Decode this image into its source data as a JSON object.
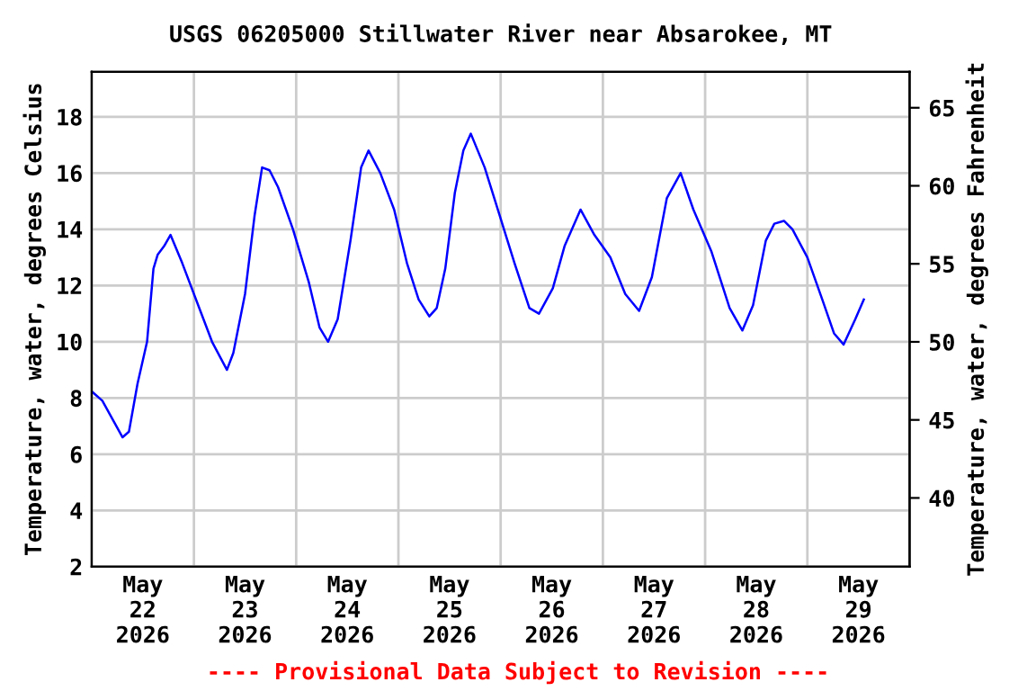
{
  "chart_data": {
    "type": "line",
    "title": "USGS 06205000 Stillwater River near Absarokee, MT",
    "ylabel": "Temperature, water, degrees Celsius",
    "y2label": "Temperature, water, degrees Fahrenheit",
    "annotations": [
      "---- Provisional Data Subject to Revision ----"
    ],
    "xlim": [
      "2026-05-22T00:00",
      "2026-05-30T00:00"
    ],
    "xticks": [
      {
        "value": "2026-05-22T00:00",
        "label": null
      },
      {
        "value": "2026-05-22T12:00",
        "label": "May\n22\n2026"
      },
      {
        "value": "2026-05-23T00:00",
        "label": null
      },
      {
        "value": "2026-05-23T12:00",
        "label": "May\n23\n2026"
      },
      {
        "value": "2026-05-24T00:00",
        "label": null
      },
      {
        "value": "2026-05-24T12:00",
        "label": "May\n24\n2026"
      },
      {
        "value": "2026-05-25T00:00",
        "label": null
      },
      {
        "value": "2026-05-25T12:00",
        "label": "May\n25\n2026"
      },
      {
        "value": "2026-05-26T00:00",
        "label": null
      },
      {
        "value": "2026-05-26T12:00",
        "label": "May\n26\n2026"
      },
      {
        "value": "2026-05-27T00:00",
        "label": null
      },
      {
        "value": "2026-05-27T12:00",
        "label": "May\n27\n2026"
      },
      {
        "value": "2026-05-28T00:00",
        "label": null
      },
      {
        "value": "2026-05-28T12:00",
        "label": "May\n28\n2026"
      },
      {
        "value": "2026-05-29T00:00",
        "label": null
      },
      {
        "value": "2026-05-29T12:00",
        "label": "May\n29\n2026"
      },
      {
        "value": "2026-05-30T00:00",
        "label": null
      }
    ],
    "ylim": [
      2,
      19.6
    ],
    "yticks": [
      2,
      4,
      6,
      8,
      10,
      12,
      14,
      16,
      18
    ],
    "y2lim": [
      35.6,
      67.3
    ],
    "y2ticks": [
      40,
      45,
      50,
      55,
      60,
      65
    ],
    "grid": true,
    "line_style": "solid",
    "marker": "none",
    "series": [
      {
        "color": "#0000ff",
        "x": [
          "2026-05-22T00:15",
          "2026-05-22T02:30",
          "2026-05-22T07:15",
          "2026-05-22T08:45",
          "2026-05-22T10:45",
          "2026-05-22T13:00",
          "2026-05-22T14:30",
          "2026-05-22T15:30",
          "2026-05-22T17:00",
          "2026-05-22T18:30",
          "2026-05-22T21:15",
          "2026-05-23T01:00",
          "2026-05-23T04:15",
          "2026-05-23T07:45",
          "2026-05-23T09:15",
          "2026-05-23T12:00",
          "2026-05-23T14:15",
          "2026-05-23T16:00",
          "2026-05-23T17:45",
          "2026-05-23T19:45",
          "2026-05-23T23:15",
          "2026-05-24T03:00",
          "2026-05-24T05:30",
          "2026-05-24T07:30",
          "2026-05-24T09:45",
          "2026-05-24T12:45",
          "2026-05-24T15:15",
          "2026-05-24T17:00",
          "2026-05-24T19:45",
          "2026-05-24T23:00",
          "2026-05-25T02:00",
          "2026-05-25T04:45",
          "2026-05-25T07:15",
          "2026-05-25T09:00",
          "2026-05-25T11:00",
          "2026-05-25T13:15",
          "2026-05-25T15:15",
          "2026-05-25T17:00",
          "2026-05-25T20:15",
          "2026-05-25T23:45",
          "2026-05-26T03:15",
          "2026-05-26T06:45",
          "2026-05-26T09:00",
          "2026-05-26T12:15",
          "2026-05-26T15:00",
          "2026-05-26T18:45",
          "2026-05-26T22:00",
          "2026-05-27T01:45",
          "2026-05-27T05:15",
          "2026-05-27T08:30",
          "2026-05-27T11:30",
          "2026-05-27T15:00",
          "2026-05-27T18:15",
          "2026-05-27T21:15",
          "2026-05-28T01:30",
          "2026-05-28T05:45",
          "2026-05-28T08:45",
          "2026-05-28T11:15",
          "2026-05-28T14:15",
          "2026-05-28T16:15",
          "2026-05-28T18:30",
          "2026-05-28T20:30",
          "2026-05-29T00:00",
          "2026-05-29T03:30",
          "2026-05-29T06:15",
          "2026-05-29T08:30",
          "2026-05-29T11:15",
          "2026-05-29T13:15"
        ],
        "values": [
          8.2,
          7.9,
          6.6,
          6.8,
          8.5,
          10.0,
          12.6,
          13.1,
          13.4,
          13.8,
          12.8,
          11.3,
          10.0,
          9.0,
          9.6,
          11.7,
          14.5,
          16.2,
          16.1,
          15.5,
          14.0,
          12.1,
          10.5,
          10.0,
          10.8,
          13.6,
          16.2,
          16.8,
          16.0,
          14.7,
          12.8,
          11.5,
          10.9,
          11.2,
          12.6,
          15.3,
          16.8,
          17.4,
          16.2,
          14.5,
          12.8,
          11.2,
          11.0,
          11.9,
          13.4,
          14.7,
          13.8,
          13.0,
          11.7,
          11.1,
          12.3,
          15.1,
          16.0,
          14.7,
          13.2,
          11.2,
          10.4,
          11.3,
          13.6,
          14.2,
          14.3,
          14.0,
          13.0,
          11.5,
          10.3,
          9.9,
          10.8,
          11.5
        ]
      }
    ]
  }
}
